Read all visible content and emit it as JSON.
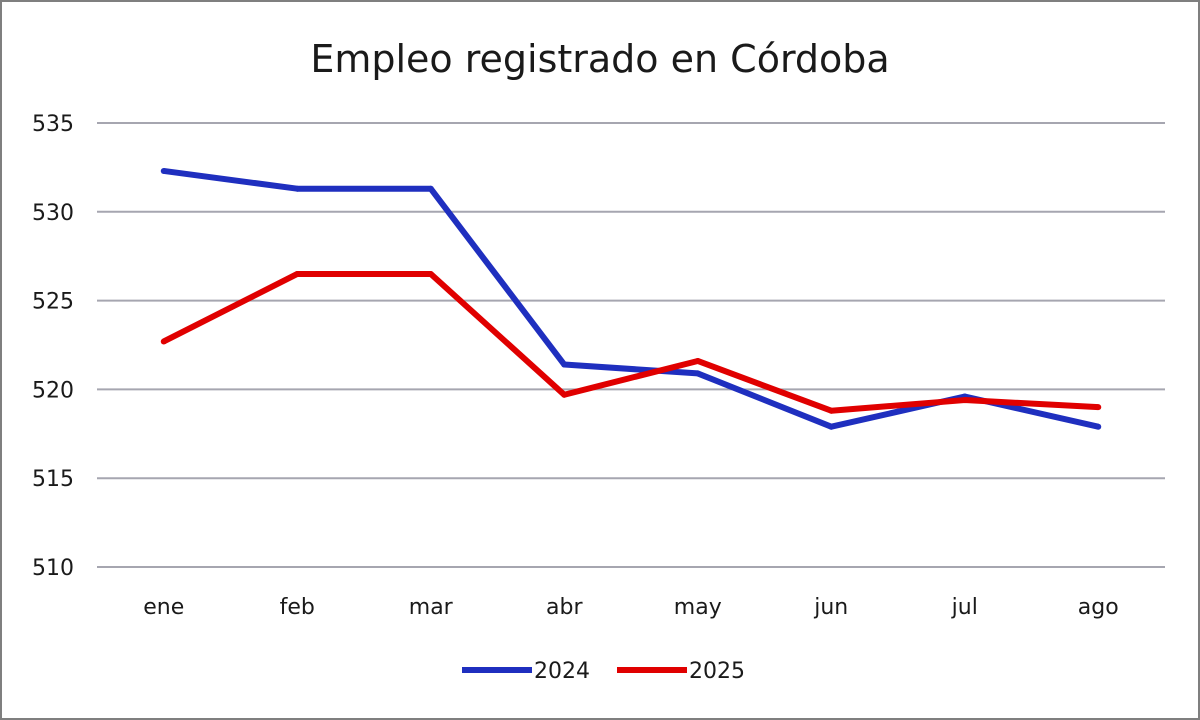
{
  "chart_data": {
    "type": "line",
    "title": "Empleo registrado en Córdoba",
    "xlabel": "",
    "ylabel": "",
    "categories": [
      "ene",
      "feb",
      "mar",
      "abr",
      "may",
      "jun",
      "jul",
      "ago"
    ],
    "ylim": [
      510,
      535
    ],
    "yticks": [
      "535",
      "530",
      "525",
      "520",
      "515",
      "510"
    ],
    "grid": true,
    "legend_position": "bottom",
    "series": [
      {
        "name": "2024",
        "color": "#1f2fbf",
        "values": [
          532.3,
          531.3,
          531.3,
          521.4,
          520.9,
          517.9,
          519.6,
          517.9
        ]
      },
      {
        "name": "2025",
        "color": "#e00000",
        "values": [
          522.7,
          526.5,
          526.5,
          519.7,
          521.6,
          518.8,
          519.4,
          519.0
        ]
      }
    ]
  }
}
